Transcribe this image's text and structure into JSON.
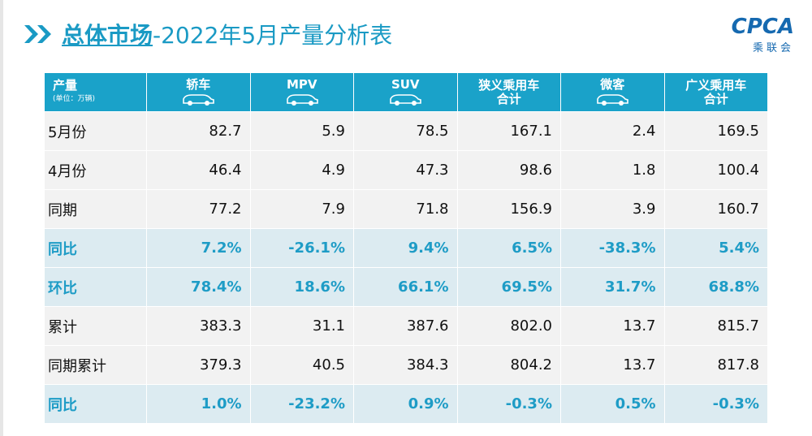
{
  "header": {
    "title_bold": "总体市场",
    "title_rest": "-2022年5月产量分析表",
    "logo": "CPCA",
    "logo_sub": "乘联会"
  },
  "table": {
    "corner": [
      "产量",
      "(单位：万辆)"
    ],
    "columns": [
      [
        "轿车"
      ],
      [
        "MPV"
      ],
      [
        "SUV"
      ],
      [
        "狭义乘用车",
        "合计"
      ],
      [
        "微客"
      ],
      [
        "广义乘用车",
        "合计"
      ]
    ],
    "rows": [
      {
        "label": "5月份",
        "cells": [
          "82.7",
          "5.9",
          "78.5",
          "167.1",
          "2.4",
          "169.5"
        ]
      },
      {
        "label": "4月份",
        "cells": [
          "46.4",
          "4.9",
          "47.3",
          "98.6",
          "1.8",
          "100.4"
        ]
      },
      {
        "label": "同期",
        "cells": [
          "77.2",
          "7.9",
          "71.8",
          "156.9",
          "3.9",
          "160.7"
        ]
      },
      {
        "label": "同比",
        "cells": [
          "7.2%",
          "-26.1%",
          "9.4%",
          "6.5%",
          "-38.3%",
          "5.4%"
        ],
        "color": "#1e9cc6",
        "background": "#dcebf1"
      },
      {
        "label": "环比",
        "cells": [
          "78.4%",
          "18.6%",
          "66.1%",
          "69.5%",
          "31.7%",
          "68.8%"
        ],
        "color": "#1e9cc6",
        "background": "#dcebf1"
      },
      {
        "label": "累计",
        "cells": [
          "383.3",
          "31.1",
          "387.6",
          "802.0",
          "13.7",
          "815.7"
        ]
      },
      {
        "label": "同期累计",
        "cells": [
          "379.3",
          "40.5",
          "384.3",
          "804.2",
          "13.7",
          "817.8"
        ]
      },
      {
        "label": "同比",
        "cells": [
          "1.0%",
          "-23.2%",
          "0.9%",
          "-0.3%",
          "0.5%",
          "-0.3%"
        ],
        "color": "#1e9cc6",
        "background": "#dcebf1"
      }
    ]
  }
}
